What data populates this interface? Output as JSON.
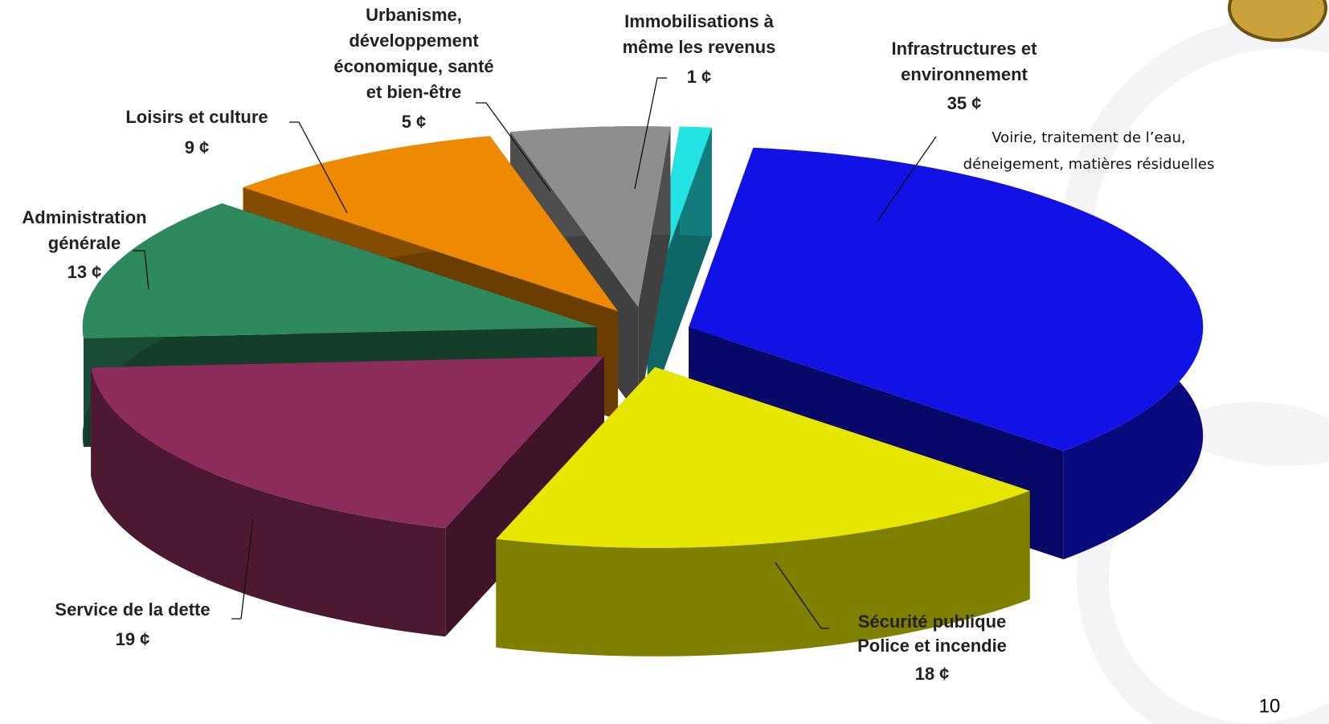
{
  "chart_data": {
    "type": "pie3d",
    "categories": [
      [
        "Infrastructures et",
        "environnement"
      ],
      [
        "Sécurité publique"
      ],
      [
        "Service de la dette"
      ],
      [
        "Administration",
        "générale"
      ],
      [
        "Loisirs et culture"
      ],
      [
        "Urbanisme,",
        "développement",
        "économique, santé",
        "et bien-être"
      ],
      [
        "Immobilisations  à",
        "même les revenus"
      ]
    ],
    "values": [
      35,
      18,
      19,
      13,
      9,
      5,
      1
    ],
    "value_labels": [
      "35 ¢",
      "18 ¢",
      "19 ¢",
      "13 ¢",
      "9 ¢",
      "5 ¢",
      "1 ¢"
    ],
    "colors": [
      "#1212e6",
      "#e6e600",
      "#8c2c5a",
      "#2e8a5e",
      "#ee8a00",
      "#8e8e8e",
      "#22e2e2"
    ],
    "annotations": [
      [
        "Voirie, traitement de l’eau,",
        "déneigement, matières résiduelles"
      ],
      [
        "Police et incendie"
      ]
    ]
  },
  "page_number": "10"
}
